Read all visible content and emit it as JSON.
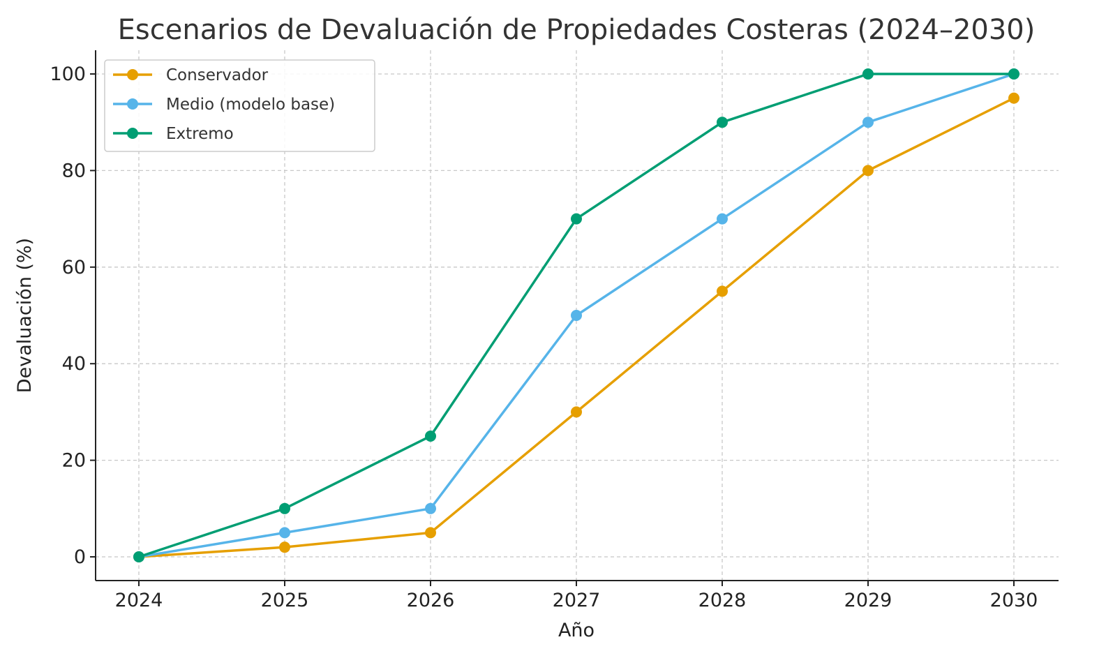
{
  "chart_data": {
    "type": "line",
    "title": "Escenarios de Devaluación de Propiedades Costeras (2024–2030)",
    "xlabel": "Año",
    "ylabel": "Devaluación (%)",
    "x": [
      2024,
      2025,
      2026,
      2027,
      2028,
      2029,
      2030
    ],
    "x_tick_labels": [
      "2024",
      "2025",
      "2026",
      "2027",
      "2028",
      "2029",
      "2030"
    ],
    "y_ticks": [
      0,
      20,
      40,
      60,
      80,
      100
    ],
    "y_tick_labels": [
      "0",
      "20",
      "40",
      "60",
      "80",
      "100"
    ],
    "xlim": [
      2023.7,
      2030.3
    ],
    "ylim": [
      -5,
      105
    ],
    "grid": true,
    "legend_position": "top-left",
    "series": [
      {
        "name": "Conservador",
        "color": "#E69F00",
        "values": [
          0,
          2,
          5,
          30,
          55,
          80,
          95
        ]
      },
      {
        "name": "Medio (modelo base)",
        "color": "#56B4E9",
        "values": [
          0,
          5,
          10,
          50,
          70,
          90,
          100
        ]
      },
      {
        "name": "Extremo",
        "color": "#009E73",
        "values": [
          0,
          10,
          25,
          70,
          90,
          100,
          100
        ]
      }
    ]
  }
}
